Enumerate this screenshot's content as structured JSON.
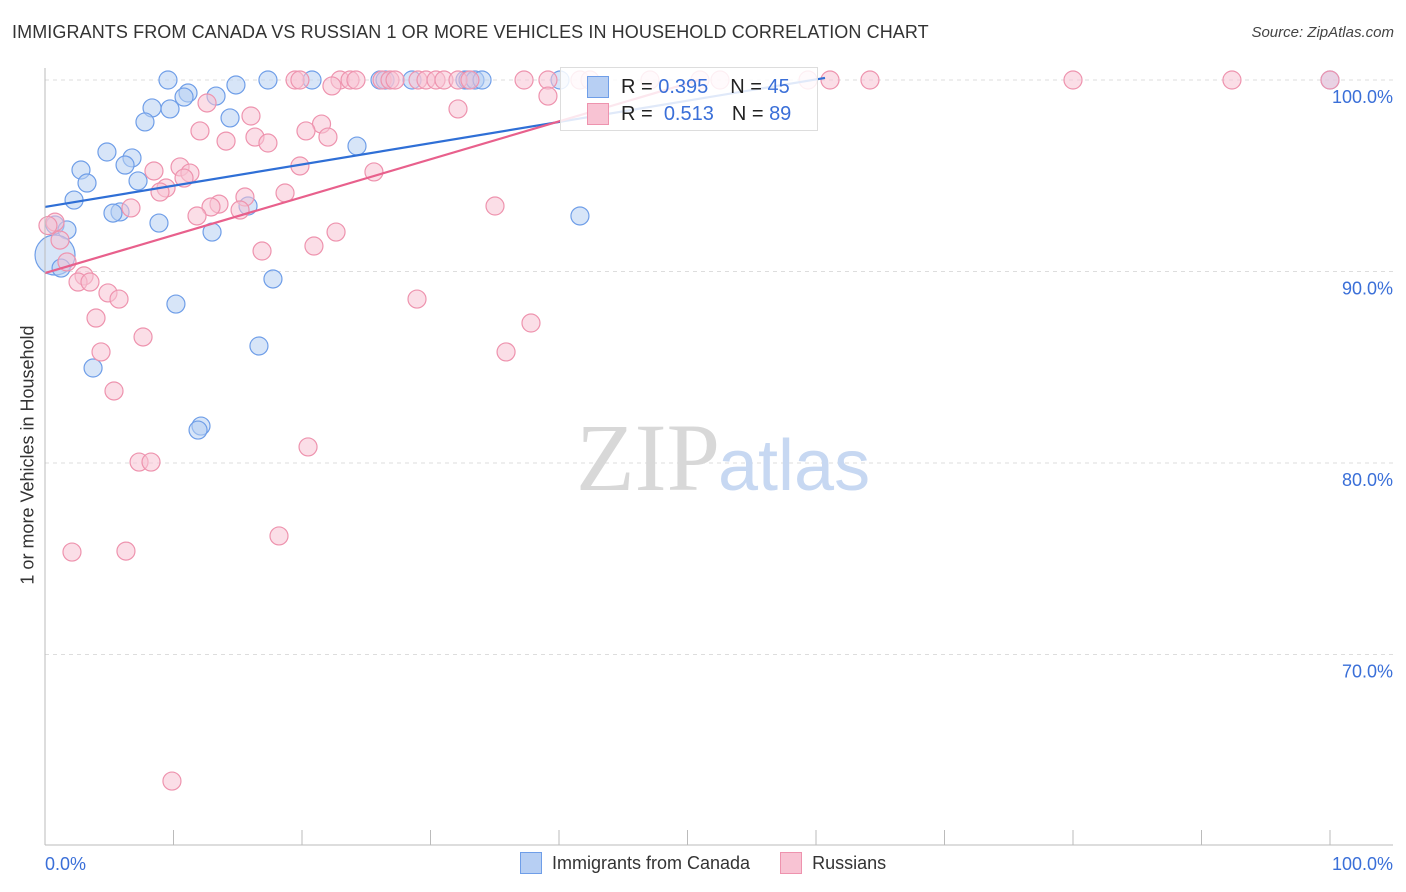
{
  "title": "IMMIGRANTS FROM CANADA VS RUSSIAN 1 OR MORE VEHICLES IN HOUSEHOLD CORRELATION CHART",
  "source": "Source: ZipAtlas.com",
  "watermark": {
    "zip": "ZIP",
    "atlas": "atlas"
  },
  "legend": {
    "rows": [
      {
        "r_label": "R =",
        "r": "0.395",
        "n_label": "N =",
        "n": "45"
      },
      {
        "r_label": "R =",
        "r": "0.513",
        "n_label": "N =",
        "n": "89"
      }
    ]
  },
  "chart_data": {
    "type": "scatter",
    "title": "IMMIGRANTS FROM CANADA VS RUSSIAN 1 OR MORE VEHICLES IN HOUSEHOLD CORRELATION CHART",
    "xlabel": "",
    "ylabel": "1 or more Vehicles in Household",
    "xlim": [
      0,
      100
    ],
    "ylim": [
      60,
      100.6
    ],
    "x_tick_labels": [
      "0.0%",
      "100.0%"
    ],
    "y_ticks": [
      70,
      80,
      90,
      100
    ],
    "y_tick_labels": [
      "70.0%",
      "80.0%",
      "90.0%",
      "100.0%"
    ],
    "grid": true,
    "legend_placement": "bottom",
    "series": [
      {
        "name": "Immigrants from Canada",
        "color": "#6f9ee8",
        "fill": "#b7cff3",
        "trend": {
          "intercept": 93.37,
          "slope": 0.111,
          "x_end": 60.7,
          "color": "#2f6fd6"
        },
        "points": [
          [
            9.57,
            100
          ],
          [
            17.35,
            100
          ],
          [
            20.78,
            100
          ],
          [
            26.07,
            100
          ],
          [
            26.46,
            100
          ],
          [
            28.56,
            100
          ],
          [
            32.68,
            100
          ],
          [
            32.92,
            100
          ],
          [
            33.46,
            100
          ],
          [
            34.01,
            100
          ],
          [
            40.08,
            100
          ],
          [
            100,
            100
          ],
          [
            14.86,
            99.74
          ],
          [
            11.13,
            99.32
          ],
          [
            13.31,
            99.16
          ],
          [
            10.82,
            99.11
          ],
          [
            8.33,
            98.54
          ],
          [
            9.73,
            98.49
          ],
          [
            14.4,
            98.02
          ],
          [
            7.78,
            97.81
          ],
          [
            24.28,
            96.55
          ],
          [
            4.82,
            96.24
          ],
          [
            6.77,
            95.93
          ],
          [
            6.23,
            95.56
          ],
          [
            2.8,
            95.3
          ],
          [
            7.24,
            94.73
          ],
          [
            3.27,
            94.62
          ],
          [
            2.26,
            93.73
          ],
          [
            15.8,
            93.42
          ],
          [
            5.84,
            93.11
          ],
          [
            5.29,
            93.05
          ],
          [
            41.63,
            92.9
          ],
          [
            8.87,
            92.53
          ],
          [
            0.78,
            92.43
          ],
          [
            1.71,
            92.17
          ],
          [
            13.0,
            92.06
          ],
          [
            0.78,
            90.86
          ],
          [
            1.25,
            90.18
          ],
          [
            17.74,
            89.61
          ],
          [
            10.19,
            88.3
          ],
          [
            16.65,
            86.11
          ],
          [
            3.74,
            84.96
          ],
          [
            12.14,
            81.93
          ],
          [
            11.91,
            81.72
          ]
        ]
      },
      {
        "name": "Russians",
        "color": "#ee93ae",
        "fill": "#f8c3d3",
        "trend": {
          "intercept": 89.92,
          "slope": 0.198,
          "x_end": 51.0,
          "color": "#e8608c"
        },
        "points": [
          [
            19.46,
            100
          ],
          [
            19.84,
            100
          ],
          [
            22.96,
            100
          ],
          [
            23.74,
            100
          ],
          [
            24.2,
            100
          ],
          [
            26.23,
            100
          ],
          [
            26.85,
            100
          ],
          [
            27.24,
            100
          ],
          [
            29.03,
            100
          ],
          [
            29.65,
            100
          ],
          [
            30.43,
            100
          ],
          [
            31.05,
            100
          ],
          [
            32.14,
            100
          ],
          [
            33.07,
            100
          ],
          [
            37.28,
            100
          ],
          [
            39.14,
            100
          ],
          [
            41.63,
            100
          ],
          [
            42.41,
            100
          ],
          [
            47.08,
            100
          ],
          [
            50.97,
            100
          ],
          [
            52.53,
            100
          ],
          [
            59.38,
            100
          ],
          [
            61.09,
            100
          ],
          [
            64.2,
            100
          ],
          [
            80,
            100
          ],
          [
            92.37,
            100
          ],
          [
            100,
            100
          ],
          [
            22.33,
            99.69
          ],
          [
            39.14,
            99.16
          ],
          [
            12.61,
            98.8
          ],
          [
            32.14,
            98.49
          ],
          [
            16.03,
            98.12
          ],
          [
            21.52,
            97.7
          ],
          [
            12.06,
            97.34
          ],
          [
            20.31,
            97.34
          ],
          [
            22.02,
            97.02
          ],
          [
            16.34,
            97.02
          ],
          [
            14.09,
            96.81
          ],
          [
            17.35,
            96.71
          ],
          [
            19.84,
            95.51
          ],
          [
            10.51,
            95.46
          ],
          [
            8.48,
            95.25
          ],
          [
            25.6,
            95.2
          ],
          [
            11.28,
            95.14
          ],
          [
            10.82,
            94.88
          ],
          [
            9.42,
            94.36
          ],
          [
            8.95,
            94.15
          ],
          [
            18.68,
            94.1
          ],
          [
            15.56,
            93.89
          ],
          [
            13.54,
            93.52
          ],
          [
            35.02,
            93.42
          ],
          [
            12.92,
            93.37
          ],
          [
            6.69,
            93.32
          ],
          [
            15.18,
            93.21
          ],
          [
            11.83,
            92.9
          ],
          [
            0.78,
            92.58
          ],
          [
            0.23,
            92.4
          ],
          [
            22.65,
            92.06
          ],
          [
            1.17,
            91.64
          ],
          [
            20.93,
            91.33
          ],
          [
            16.89,
            91.07
          ],
          [
            1.71,
            90.5
          ],
          [
            3.04,
            89.77
          ],
          [
            2.57,
            89.45
          ],
          [
            3.5,
            89.45
          ],
          [
            4.9,
            88.88
          ],
          [
            5.76,
            88.56
          ],
          [
            28.95,
            88.56
          ],
          [
            3.97,
            87.57
          ],
          [
            37.82,
            87.31
          ],
          [
            7.63,
            86.58
          ],
          [
            4.36,
            85.8
          ],
          [
            35.88,
            85.8
          ],
          [
            5.37,
            83.76
          ],
          [
            20.47,
            80.84
          ],
          [
            7.32,
            80.05
          ],
          [
            8.25,
            80.05
          ],
          [
            18.21,
            76.19
          ],
          [
            2.1,
            75.35
          ],
          [
            6.3,
            75.4
          ],
          [
            9.88,
            63.39
          ]
        ]
      }
    ]
  }
}
